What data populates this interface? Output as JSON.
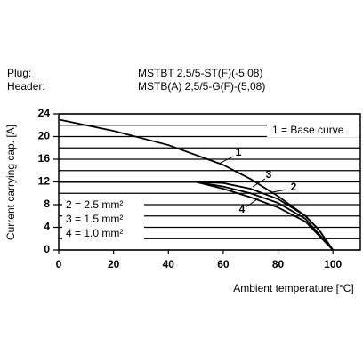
{
  "header": {
    "plug_label": "Plug:",
    "plug_value": "MSTBT 2,5/5-ST(F)(-5,08)",
    "header_label": "Header:",
    "header_value": "MSTB(A) 2,5/5-G(F)-(5,08)"
  },
  "chart_data": {
    "type": "line",
    "y_label": "Current carrying cap. [A]",
    "x_label": "Ambient temperature [°C]",
    "xlim": [
      0,
      110
    ],
    "xticks": [
      0,
      20,
      40,
      60,
      80,
      100
    ],
    "ylim": [
      0,
      24
    ],
    "yticks": [
      0,
      4,
      8,
      12,
      16,
      20,
      24
    ],
    "minor_yticks": [
      2,
      6,
      10,
      14,
      18,
      22
    ],
    "grid": true,
    "legend_notes": [
      "1 = Base curve",
      "2 = 2.5 mm²",
      "3 = 1.5 mm²",
      "4 = 1.0 mm²"
    ],
    "series": [
      {
        "name": "1",
        "color": "#000000",
        "x": [
          0,
          20,
          40,
          60,
          70,
          80,
          90,
          95,
          100
        ],
        "values": [
          23,
          21,
          18.5,
          15,
          12.5,
          9.5,
          6,
          3.5,
          0
        ]
      },
      {
        "name": "2",
        "color": "#000000",
        "x": [
          0,
          50,
          60,
          70,
          80,
          90,
          95,
          100
        ],
        "values": [
          12,
          12,
          11.8,
          10.8,
          9,
          6,
          3.5,
          0
        ]
      },
      {
        "name": "3",
        "color": "#000000",
        "x": [
          0,
          50,
          60,
          70,
          80,
          90,
          100
        ],
        "values": [
          12,
          12,
          11.2,
          10,
          8.3,
          5.5,
          0
        ]
      },
      {
        "name": "4",
        "color": "#000000",
        "x": [
          0,
          50,
          60,
          70,
          80,
          90,
          100
        ],
        "values": [
          12,
          12,
          10.8,
          9.3,
          7.5,
          5,
          0
        ]
      }
    ]
  }
}
